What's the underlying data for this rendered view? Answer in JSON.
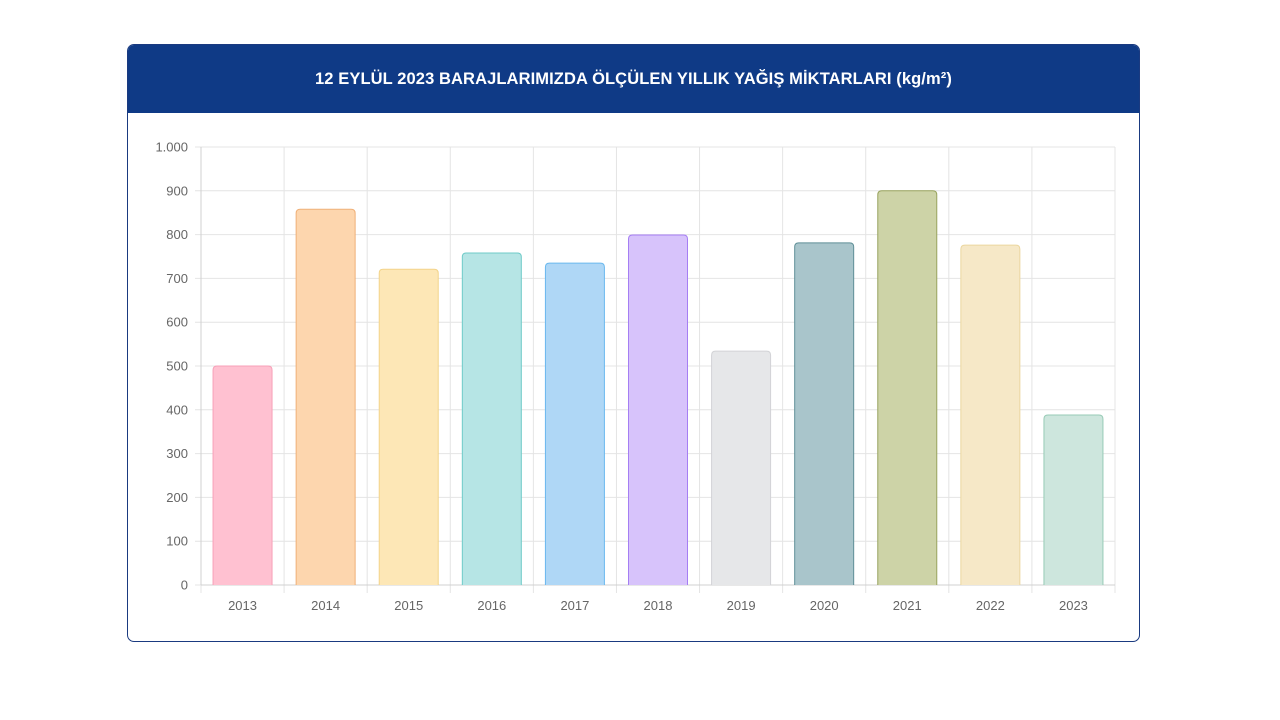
{
  "chart_data": {
    "type": "bar",
    "title": "12 EYLÜL 2023 BARAJLARIMIZDA ÖLÇÜLEN YILLIK YAĞIŞ MİKTARLARI (kg/m²)",
    "xlabel": "",
    "ylabel": "",
    "ylim": [
      0,
      1000
    ],
    "yticks": [
      0,
      100,
      200,
      300,
      400,
      500,
      600,
      700,
      800,
      900,
      1000
    ],
    "ytick_labels": [
      "0",
      "100",
      "200",
      "300",
      "400",
      "500",
      "600",
      "700",
      "800",
      "900",
      "1.000"
    ],
    "grid": true,
    "legend": "none",
    "categories": [
      "2013",
      "2014",
      "2015",
      "2016",
      "2017",
      "2018",
      "2019",
      "2020",
      "2021",
      "2022",
      "2023"
    ],
    "values": [
      500,
      858,
      721,
      758,
      735,
      799,
      534,
      781,
      900,
      776,
      388
    ],
    "fill_colors": [
      "#ffc1d1",
      "#fdd6ae",
      "#fde7b6",
      "#b6e5e5",
      "#afd7f6",
      "#d7c3fb",
      "#e6e7e9",
      "#a9c5cb",
      "#cdd3a7",
      "#f6e8c7",
      "#cde6dd"
    ],
    "border_colors": [
      "#f7a0b8",
      "#efb078",
      "#f3d48a",
      "#6fcbc8",
      "#6ab8ee",
      "#a57ef3",
      "#d2d3d6",
      "#5f8f97",
      "#99a45e",
      "#ebd69f",
      "#97cbb6"
    ]
  },
  "colors": {
    "header_bg": "#0f3a86",
    "header_text": "#ffffff"
  }
}
